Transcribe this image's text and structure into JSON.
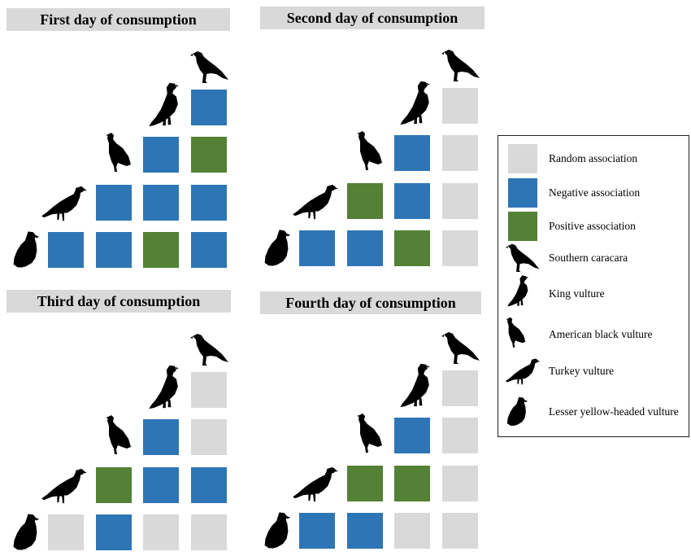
{
  "colors": {
    "random": "#d9d9d9",
    "negative": "#2e75b6",
    "positive": "#538135",
    "title_bg": "#d9d9d9",
    "bird": "#000000"
  },
  "birds": [
    {
      "key": "lesser_yellow_headed",
      "icon": "lesser-yellow-headed-vulture-icon"
    },
    {
      "key": "turkey",
      "icon": "turkey-vulture-icon"
    },
    {
      "key": "american_black",
      "icon": "american-black-vulture-icon"
    },
    {
      "key": "king",
      "icon": "king-vulture-icon"
    },
    {
      "key": "southern_caracara",
      "icon": "southern-caracara-icon"
    }
  ],
  "panels": [
    {
      "title": "First day of consumption",
      "rows": [
        [
          "negative"
        ],
        [
          "negative",
          "positive"
        ],
        [
          "negative",
          "negative",
          "negative"
        ],
        [
          "negative",
          "negative",
          "positive",
          "negative"
        ]
      ]
    },
    {
      "title": "Second day of consumption",
      "rows": [
        [
          "random"
        ],
        [
          "negative",
          "random"
        ],
        [
          "positive",
          "negative",
          "random"
        ],
        [
          "negative",
          "negative",
          "positive",
          "random"
        ]
      ]
    },
    {
      "title": "Third day of consumption",
      "rows": [
        [
          "random"
        ],
        [
          "negative",
          "random"
        ],
        [
          "positive",
          "negative",
          "negative"
        ],
        [
          "random",
          "negative",
          "random",
          "random"
        ]
      ]
    },
    {
      "title": "Fourth day of consumption",
      "rows": [
        [
          "random"
        ],
        [
          "negative",
          "random"
        ],
        [
          "positive",
          "positive",
          "random"
        ],
        [
          "negative",
          "negative",
          "random",
          "random"
        ]
      ]
    }
  ],
  "legend": {
    "associations": [
      {
        "type": "random",
        "label": "Random association"
      },
      {
        "type": "negative",
        "label": "Negative association"
      },
      {
        "type": "positive",
        "label": "Positive association"
      }
    ],
    "species": [
      {
        "icon": "southern-caracara-icon",
        "label": "Southern caracara"
      },
      {
        "icon": "king-vulture-icon",
        "label": "King vulture"
      },
      {
        "icon": "american-black-vulture-icon",
        "label": "American black vulture"
      },
      {
        "icon": "turkey-vulture-icon",
        "label": "Turkey vulture"
      },
      {
        "icon": "lesser-yellow-headed-vulture-icon",
        "label": "Lesser yellow-headed vulture"
      }
    ]
  }
}
